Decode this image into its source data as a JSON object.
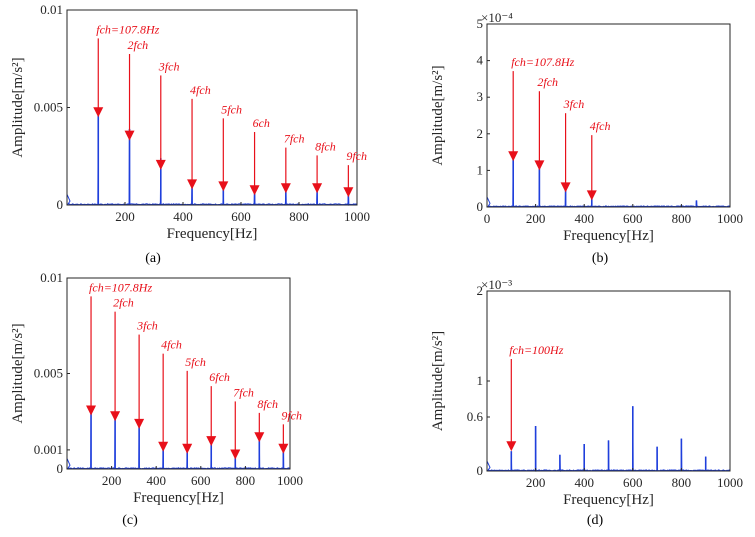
{
  "colors": {
    "spectrum": "#1f3fdc",
    "annotation": "#e8101a",
    "axis": "#262626"
  },
  "chart_data": [
    {
      "type": "line",
      "panel_label": "(a)",
      "xlabel": "Frequency[Hz]",
      "ylabel": "Amplitude[m/s²]",
      "xlim": [
        0,
        1000
      ],
      "ylim": [
        0,
        0.01
      ],
      "y_multiplier": "",
      "x_ticks": [
        200,
        400,
        600,
        800,
        1000
      ],
      "y_ticks": [
        {
          "v": 0,
          "t": "0"
        },
        {
          "v": 0.005,
          "t": "0.005"
        },
        {
          "v": 0.01,
          "t": "0.01"
        }
      ],
      "peaks": [
        {
          "x": 107.8,
          "y": 0.0049
        },
        {
          "x": 215.6,
          "y": 0.0039
        },
        {
          "x": 323.4,
          "y": 0.0024
        },
        {
          "x": 431.2,
          "y": 0.0011
        },
        {
          "x": 539,
          "y": 0.001
        },
        {
          "x": 646.8,
          "y": 0.0007
        },
        {
          "x": 754.6,
          "y": 0.0009
        },
        {
          "x": 862.4,
          "y": 0.0008
        },
        {
          "x": 970.2,
          "y": 0.0007
        }
      ],
      "annotations": [
        {
          "label": "fch=107.8Hz",
          "x": 107.8,
          "label_y": 0.0088,
          "tip_y": 0.0045
        },
        {
          "label": "2fch",
          "x": 215.6,
          "label_y": 0.008,
          "tip_y": 0.0033
        },
        {
          "label": "3fch",
          "x": 323.4,
          "label_y": 0.0069,
          "tip_y": 0.0018
        },
        {
          "label": "4fch",
          "x": 431.2,
          "label_y": 0.0057,
          "tip_y": 0.0008
        },
        {
          "label": "5fch",
          "x": 539,
          "label_y": 0.0047,
          "tip_y": 0.0007
        },
        {
          "label": "6ch",
          "x": 646.8,
          "label_y": 0.004,
          "tip_y": 0.0005
        },
        {
          "label": "7fch",
          "x": 754.6,
          "label_y": 0.0032,
          "tip_y": 0.0006
        },
        {
          "label": "8fch",
          "x": 862.4,
          "label_y": 0.0028,
          "tip_y": 0.0006
        },
        {
          "label": "9fch",
          "x": 970.2,
          "label_y": 0.0023,
          "tip_y": 0.0004
        }
      ]
    },
    {
      "type": "line",
      "panel_label": "(b)",
      "xlabel": "Frequency[Hz]",
      "ylabel": "Amplitude[m/s²]",
      "xlim": [
        0,
        1000
      ],
      "ylim": [
        0,
        5
      ],
      "y_multiplier": "×10⁻⁴",
      "x_ticks": [
        0,
        200,
        400,
        600,
        800,
        1000
      ],
      "y_ticks": [
        {
          "v": 0,
          "t": "0"
        },
        {
          "v": 1,
          "t": "1"
        },
        {
          "v": 2,
          "t": "2"
        },
        {
          "v": 3,
          "t": "3"
        },
        {
          "v": 4,
          "t": "4"
        },
        {
          "v": 5,
          "t": "5"
        }
      ],
      "peaks": [
        {
          "x": 107.8,
          "y": 1.45
        },
        {
          "x": 215.6,
          "y": 1.2
        },
        {
          "x": 323.4,
          "y": 0.55
        },
        {
          "x": 431.2,
          "y": 0.3
        },
        {
          "x": 862,
          "y": 0.18
        }
      ],
      "annotations": [
        {
          "label": "fch=107.8Hz",
          "x": 107.8,
          "label_y": 3.85,
          "tip_y": 1.25
        },
        {
          "label": "2fch",
          "x": 215.6,
          "label_y": 3.3,
          "tip_y": 1.0
        },
        {
          "label": "3fch",
          "x": 323.4,
          "label_y": 2.7,
          "tip_y": 0.4
        },
        {
          "label": "4fch",
          "x": 431.2,
          "label_y": 2.1,
          "tip_y": 0.18
        }
      ]
    },
    {
      "type": "line",
      "panel_label": "(c)",
      "xlabel": "Frequency[Hz]",
      "ylabel": "Amplitude[m/s²]",
      "xlim": [
        0,
        1000
      ],
      "ylim": [
        0,
        0.01
      ],
      "y_multiplier": "",
      "x_ticks": [
        200,
        400,
        600,
        800,
        1000
      ],
      "y_ticks": [
        {
          "v": 0,
          "t": "0"
        },
        {
          "v": 0.001,
          "t": "0.001"
        },
        {
          "v": 0.005,
          "t": "0.005"
        },
        {
          "v": 0.01,
          "t": "0.01"
        }
      ],
      "peaks": [
        {
          "x": 107.8,
          "y": 0.0032
        },
        {
          "x": 215.6,
          "y": 0.0029
        },
        {
          "x": 323.4,
          "y": 0.0025
        },
        {
          "x": 431.2,
          "y": 0.0013
        },
        {
          "x": 539,
          "y": 0.0012
        },
        {
          "x": 646.8,
          "y": 0.0016
        },
        {
          "x": 754.6,
          "y": 0.0009
        },
        {
          "x": 862.4,
          "y": 0.0018
        },
        {
          "x": 970.2,
          "y": 0.0012
        }
      ],
      "annotations": [
        {
          "label": "fch=107.8Hz",
          "x": 107.8,
          "label_y": 0.0093,
          "tip_y": 0.0028
        },
        {
          "label": "2fch",
          "x": 215.6,
          "label_y": 0.0085,
          "tip_y": 0.0025
        },
        {
          "label": "3fch",
          "x": 323.4,
          "label_y": 0.0073,
          "tip_y": 0.0021
        },
        {
          "label": "4fch",
          "x": 431.2,
          "label_y": 0.0063,
          "tip_y": 0.0009
        },
        {
          "label": "5fch",
          "x": 539,
          "label_y": 0.0054,
          "tip_y": 0.0008
        },
        {
          "label": "6fch",
          "x": 646.8,
          "label_y": 0.0046,
          "tip_y": 0.0012
        },
        {
          "label": "7fch",
          "x": 754.6,
          "label_y": 0.0038,
          "tip_y": 0.0005
        },
        {
          "label": "8fch",
          "x": 862.4,
          "label_y": 0.0032,
          "tip_y": 0.0014
        },
        {
          "label": "9fch",
          "x": 970.2,
          "label_y": 0.0026,
          "tip_y": 0.0008
        }
      ]
    },
    {
      "type": "line",
      "panel_label": "(d)",
      "xlabel": "Frequency[Hz]",
      "ylabel": "Amplitude[m/s²]",
      "xlim": [
        0,
        1000
      ],
      "ylim": [
        0,
        2
      ],
      "y_multiplier": "×10⁻³",
      "x_ticks": [
        200,
        400,
        600,
        800,
        1000
      ],
      "y_ticks": [
        {
          "v": 0,
          "t": "0"
        },
        {
          "v": 0.6,
          "t": "0.6"
        },
        {
          "v": 1,
          "t": "1"
        },
        {
          "v": 2,
          "t": "2"
        }
      ],
      "peaks": [
        {
          "x": 100,
          "y": 0.22
        },
        {
          "x": 200,
          "y": 0.5
        },
        {
          "x": 300,
          "y": 0.18
        },
        {
          "x": 400,
          "y": 0.3
        },
        {
          "x": 500,
          "y": 0.34
        },
        {
          "x": 600,
          "y": 0.72
        },
        {
          "x": 700,
          "y": 0.27
        },
        {
          "x": 800,
          "y": 0.36
        },
        {
          "x": 900,
          "y": 0.16
        }
      ],
      "annotations": [
        {
          "label": "fch=100Hz",
          "x": 100,
          "label_y": 1.3,
          "tip_y": 0.22
        }
      ]
    }
  ]
}
